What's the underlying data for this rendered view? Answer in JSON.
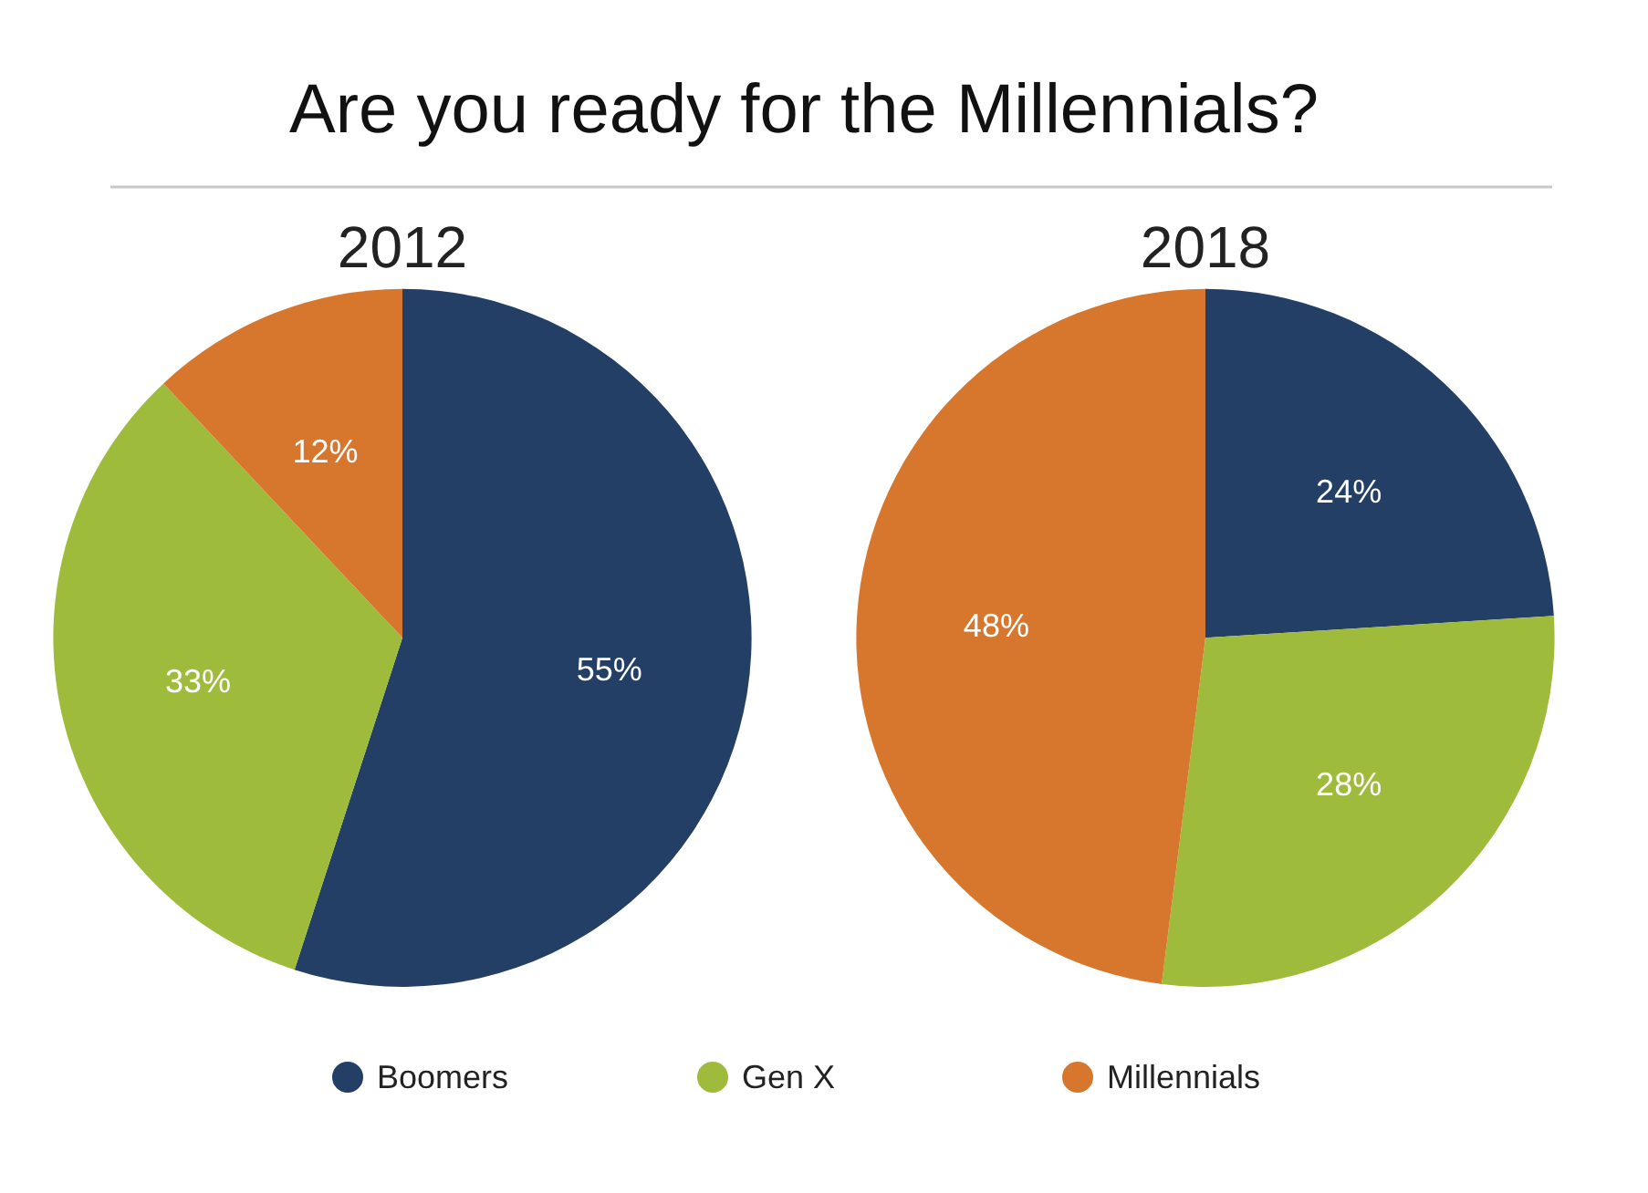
{
  "chart_data": [
    {
      "type": "pie",
      "title": "2012",
      "annotations": [
        "Are you ready for the Millennials?"
      ],
      "categories": [
        "Boomers",
        "Gen X",
        "Millennials"
      ],
      "values": [
        55,
        33,
        12
      ],
      "colors": [
        "#233f66",
        "#9fbb3c",
        "#d7772d"
      ],
      "value_labels": [
        "55%",
        "33%",
        "12%"
      ],
      "legend": "bottom"
    },
    {
      "type": "pie",
      "title": "2018",
      "categories": [
        null,
        null,
        null
      ],
      "values": [
        24,
        28,
        48
      ],
      "colors": [
        "#233f66",
        "#9fbb3c",
        "#d7772d"
      ],
      "value_labels": [
        "24%",
        "28%",
        "48%"
      ]
    }
  ]
}
